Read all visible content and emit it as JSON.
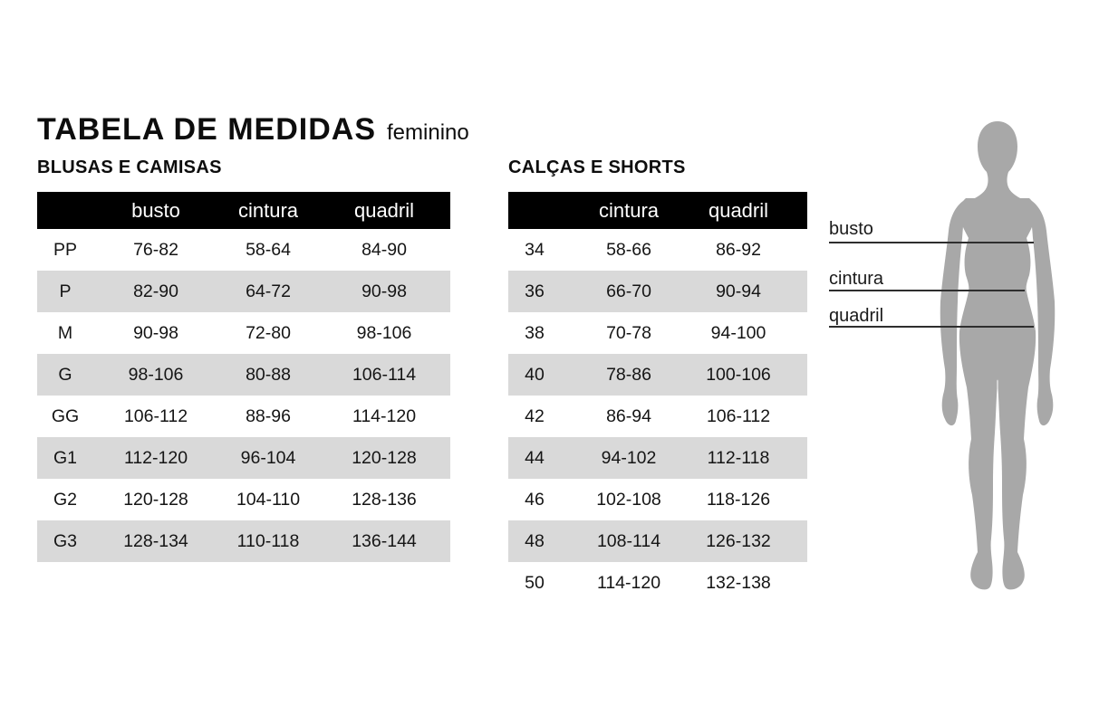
{
  "page": {
    "title": "TABELA DE MEDIDAS",
    "subtitle": "feminino"
  },
  "colors": {
    "header_bar": "#000000",
    "header_text": "#ffffff",
    "row_stripe": "#d9d9d9",
    "silhouette": "#a8a8a8",
    "text": "#151515",
    "measure_line": "#2e2e2e"
  },
  "blusas": {
    "section_title": "BLUSAS E CAMISAS",
    "columns": {
      "size": "",
      "busto": "busto",
      "cintura": "cintura",
      "quadril": "quadril"
    },
    "rows": [
      {
        "size": "PP",
        "busto": "76-82",
        "cintura": "58-64",
        "quadril": "84-90"
      },
      {
        "size": "P",
        "busto": "82-90",
        "cintura": "64-72",
        "quadril": "90-98"
      },
      {
        "size": "M",
        "busto": "90-98",
        "cintura": "72-80",
        "quadril": "98-106"
      },
      {
        "size": "G",
        "busto": "98-106",
        "cintura": "80-88",
        "quadril": "106-114"
      },
      {
        "size": "GG",
        "busto": "106-112",
        "cintura": "88-96",
        "quadril": "114-120"
      },
      {
        "size": "G1",
        "busto": "112-120",
        "cintura": "96-104",
        "quadril": "120-128"
      },
      {
        "size": "G2",
        "busto": "120-128",
        "cintura": "104-110",
        "quadril": "128-136"
      },
      {
        "size": "G3",
        "busto": "128-134",
        "cintura": "110-118",
        "quadril": "136-144"
      }
    ]
  },
  "calcas": {
    "section_title": "CALÇAS E SHORTS",
    "columns": {
      "size": "",
      "cintura": "cintura",
      "quadril": "quadril"
    },
    "rows": [
      {
        "size": "34",
        "cintura": "58-66",
        "quadril": "86-92"
      },
      {
        "size": "36",
        "cintura": "66-70",
        "quadril": "90-94"
      },
      {
        "size": "38",
        "cintura": "70-78",
        "quadril": "94-100"
      },
      {
        "size": "40",
        "cintura": "78-86",
        "quadril": "100-106"
      },
      {
        "size": "42",
        "cintura": "86-94",
        "quadril": "106-112"
      },
      {
        "size": "44",
        "cintura": "94-102",
        "quadril": "112-118"
      },
      {
        "size": "46",
        "cintura": "102-108",
        "quadril": "118-126"
      },
      {
        "size": "48",
        "cintura": "108-114",
        "quadril": "126-132"
      },
      {
        "size": "50",
        "cintura": "114-120",
        "quadril": "132-138"
      }
    ]
  },
  "figure": {
    "labels": {
      "busto": "busto",
      "cintura": "cintura",
      "quadril": "quadril"
    }
  }
}
